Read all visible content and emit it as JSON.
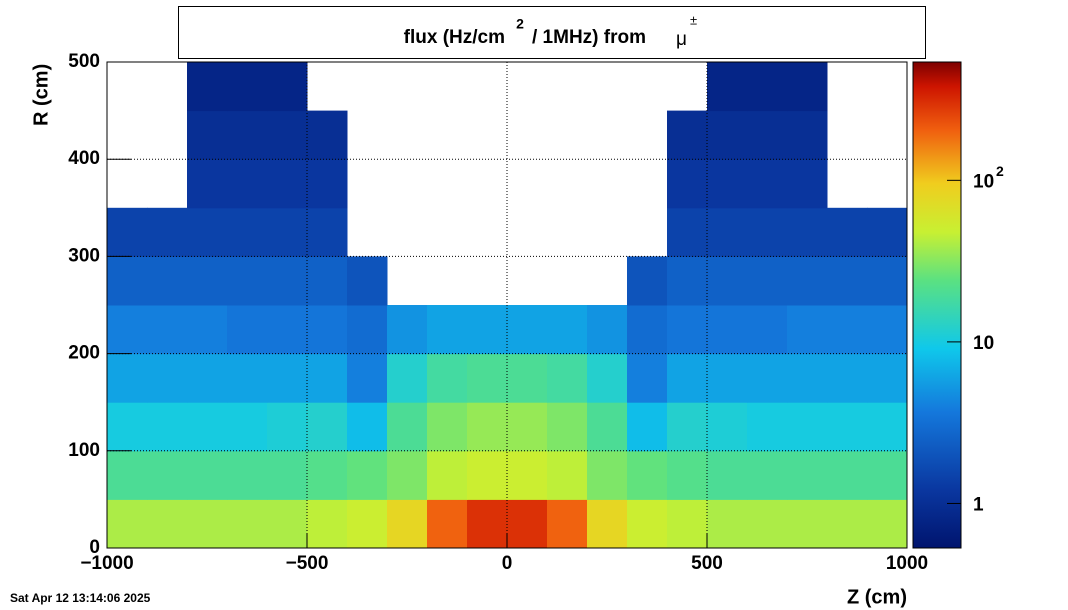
{
  "chart_data": {
    "type": "heatmap",
    "title": [
      "flux (Hz/cm",
      "2",
      "/ 1MHz) from",
      "μ",
      "±"
    ],
    "xlabel": "Z (cm)",
    "ylabel": "R (cm)",
    "timestamp": "Sat Apr 12 13:14:06 2025",
    "xlim": [
      -1000,
      1000
    ],
    "xticks": [
      {
        "value": -1000,
        "label": "−1000"
      },
      {
        "value": -500,
        "label": "−500"
      },
      0,
      500,
      1000
    ],
    "ylim": [
      0,
      500
    ],
    "yticks": [
      0,
      100,
      200,
      300,
      400,
      500
    ],
    "zlim": [
      0.53,
      540
    ],
    "zscale": "log",
    "zticks": [
      1,
      10,
      {
        "value": 100,
        "label": "10",
        "exponent": "2"
      }
    ],
    "grid": true,
    "xbins": [
      -1000,
      -900,
      -800,
      -700,
      -600,
      -500,
      -400,
      -300,
      -200,
      -100,
      0,
      100,
      200,
      300,
      400,
      500,
      600,
      700,
      800,
      900,
      1000
    ],
    "ybins": [
      0,
      50,
      100,
      150,
      200,
      250,
      300,
      350,
      400,
      450,
      500
    ],
    "values": [
      [
        40,
        40,
        40,
        40,
        40,
        45,
        50,
        80,
        200,
        300,
        300,
        200,
        80,
        50,
        45,
        40,
        40,
        40,
        40,
        40
      ],
      [
        20,
        20,
        20,
        20,
        20,
        22,
        25,
        30,
        45,
        50,
        50,
        45,
        30,
        25,
        22,
        20,
        20,
        20,
        20,
        20
      ],
      [
        10,
        10,
        10,
        10,
        11,
        12,
        8,
        20,
        30,
        35,
        35,
        30,
        20,
        8,
        12,
        11,
        10,
        10,
        10,
        10
      ],
      [
        6,
        6,
        6,
        6,
        6,
        6,
        4,
        12,
        18,
        20,
        20,
        18,
        12,
        4,
        6,
        6,
        6,
        6,
        6,
        6
      ],
      [
        4,
        4,
        4,
        3.5,
        3.5,
        3.5,
        3,
        5,
        6,
        6,
        6,
        6,
        5,
        3,
        3.5,
        3.5,
        3.5,
        4,
        4,
        4
      ],
      [
        2.5,
        2.5,
        2.5,
        2.5,
        2.5,
        2.5,
        2,
        null,
        null,
        null,
        null,
        null,
        null,
        2,
        2.5,
        2.5,
        2.5,
        2.5,
        2.5,
        2.5
      ],
      [
        1.5,
        1.5,
        1.5,
        1.5,
        1.5,
        1.5,
        null,
        null,
        null,
        null,
        null,
        null,
        null,
        null,
        1.5,
        1.5,
        1.5,
        1.5,
        1.5,
        1.5
      ],
      [
        null,
        null,
        1.2,
        1.2,
        1.2,
        1.2,
        null,
        null,
        null,
        null,
        null,
        null,
        null,
        null,
        1.2,
        1.2,
        1.2,
        1.2,
        null,
        null
      ],
      [
        null,
        null,
        1,
        1,
        1,
        1,
        null,
        null,
        null,
        null,
        null,
        null,
        null,
        null,
        1,
        1,
        1,
        1,
        null,
        null
      ],
      [
        null,
        null,
        0.8,
        0.8,
        0.8,
        null,
        null,
        null,
        null,
        null,
        null,
        null,
        null,
        null,
        null,
        0.8,
        0.8,
        0.8,
        null,
        null
      ]
    ]
  }
}
